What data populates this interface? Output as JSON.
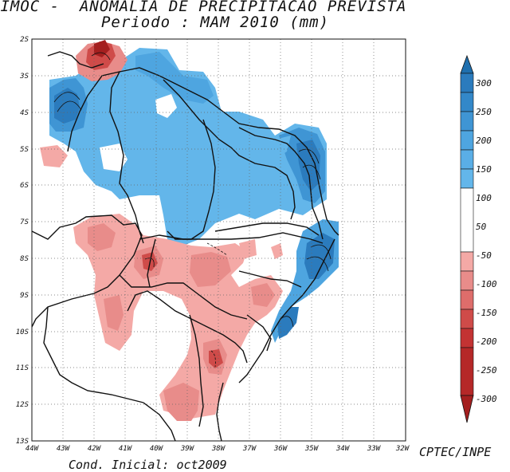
{
  "title": {
    "line1": "SIMOC -  ANOMALIA DE PRECIPITACAO PREVISTA",
    "line2": "Periodo : MAM 2010 (mm)"
  },
  "footer": {
    "credit": "CPTEC/INPE",
    "cond": "Cond. Inicial: oct2009"
  },
  "map": {
    "lat_labels": [
      "2S",
      "3S",
      "4S",
      "5S",
      "6S",
      "7S",
      "8S",
      "9S",
      "10S",
      "11S",
      "12S",
      "13S"
    ],
    "lon_labels": [
      "44W",
      "43W",
      "42W",
      "41W",
      "40W",
      "39W",
      "38W",
      "37W",
      "36W",
      "35W",
      "34W",
      "33W",
      "32W"
    ]
  },
  "colorbar": {
    "labels": [
      "300",
      "250",
      "200",
      "150",
      "100",
      "50",
      "-50",
      "-100",
      "-150",
      "-200",
      "-250",
      "-300"
    ],
    "colors": {
      "pos_top": "#1f6fae",
      "pos_300": "#2b7bbd",
      "pos_250": "#3388c9",
      "pos_200": "#3f95d4",
      "pos_150": "#4ea5e0",
      "pos_100": "#63b6ea",
      "pos_50": "#ffffff",
      "neg_50": "#f4a9a6",
      "neg_100": "#e88c8a",
      "neg_150": "#de6d6b",
      "neg_200": "#cf4b49",
      "neg_250": "#c33333",
      "neg_300": "#a41f1f"
    }
  }
}
